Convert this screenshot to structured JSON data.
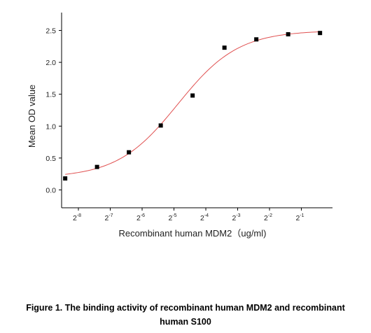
{
  "chart_data": {
    "type": "scatter",
    "xlabel": "Recombinant human  MDM2（ug/ml)",
    "ylabel": "Mean OD value",
    "x_scale": "log2",
    "x_ticks": [
      {
        "base": "2",
        "exp": "-8",
        "value": 0.00390625
      },
      {
        "base": "2",
        "exp": "-7",
        "value": 0.0078125
      },
      {
        "base": "2",
        "exp": "-6",
        "value": 0.015625
      },
      {
        "base": "2",
        "exp": "-5",
        "value": 0.03125
      },
      {
        "base": "2",
        "exp": "-4",
        "value": 0.0625
      },
      {
        "base": "2",
        "exp": "-3",
        "value": 0.125
      },
      {
        "base": "2",
        "exp": "-2",
        "value": 0.25
      },
      {
        "base": "2",
        "exp": "-1",
        "value": 0.5
      }
    ],
    "y_ticks": [
      "0.0",
      "0.5",
      "1.0",
      "1.5",
      "2.0",
      "2.5"
    ],
    "ylim": [
      -0.28,
      2.78
    ],
    "xlim": [
      0.00271,
      0.984
    ],
    "grid": false,
    "series": [
      {
        "marker": "square",
        "color": "#000000",
        "x": [
          0.00293,
          0.00586,
          0.01172,
          0.02344,
          0.04688,
          0.09375,
          0.1875,
          0.375,
          0.75
        ],
        "y": [
          0.18,
          0.36,
          0.59,
          1.01,
          1.48,
          2.23,
          2.36,
          2.44,
          2.46
        ]
      }
    ],
    "fit": {
      "type": "4PL",
      "color": "#e05050",
      "bottom": 0.19,
      "top": 2.5,
      "ec50": 0.034,
      "hill": 1.52
    }
  },
  "caption": {
    "line1": "Figure 1. The binding activity of recombinant human MDM2 and recombinant",
    "line2": "human S100"
  }
}
